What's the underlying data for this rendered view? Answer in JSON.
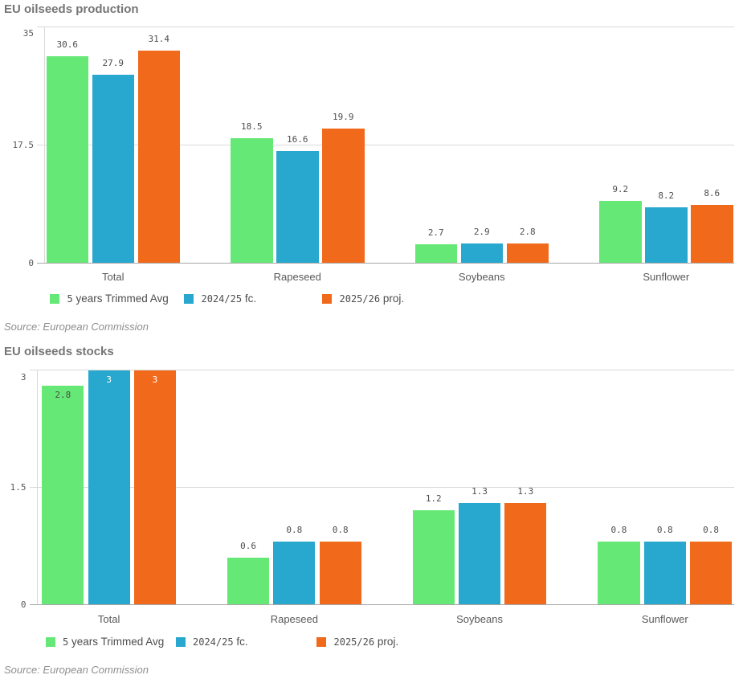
{
  "chart_data": [
    {
      "type": "bar",
      "title": "EU oilseeds production",
      "source": "Source: European Commission",
      "categories": [
        "Total",
        "Rapeseed",
        "Soybeans",
        "Sunflower"
      ],
      "series": [
        {
          "name": "5 years Trimmed Avg",
          "color": "#66e876",
          "values": [
            30.6,
            18.5,
            2.7,
            9.2
          ]
        },
        {
          "name": "2024/25 fc.",
          "color": "#28a8ce",
          "values": [
            27.9,
            16.6,
            2.9,
            8.2
          ]
        },
        {
          "name": "2025/26 proj.",
          "color": "#f16a1c",
          "values": [
            31.4,
            19.9,
            2.8,
            8.6
          ]
        }
      ],
      "ylim": [
        0,
        35
      ],
      "ytick_labels": [
        "0",
        "17.5",
        "35"
      ],
      "grid": true,
      "legend_position": "bottom",
      "value_labels": true
    },
    {
      "type": "bar",
      "title": "EU oilseeds stocks",
      "source": "Source: European Commission",
      "categories": [
        "Total",
        "Rapeseed",
        "Soybeans",
        "Sunflower"
      ],
      "series": [
        {
          "name": "5 years Trimmed Avg",
          "color": "#66e876",
          "values": [
            2.8,
            0.6,
            1.2,
            0.8
          ]
        },
        {
          "name": "2024/25 fc.",
          "color": "#28a8ce",
          "values": [
            3,
            0.8,
            1.3,
            0.8
          ]
        },
        {
          "name": "2025/26 proj.",
          "color": "#f16a1c",
          "values": [
            3,
            0.8,
            1.3,
            0.8
          ]
        }
      ],
      "ylim": [
        0,
        3
      ],
      "ytick_labels": [
        "0",
        "1.5",
        "3"
      ],
      "grid": true,
      "legend_position": "bottom",
      "value_labels": true
    }
  ]
}
